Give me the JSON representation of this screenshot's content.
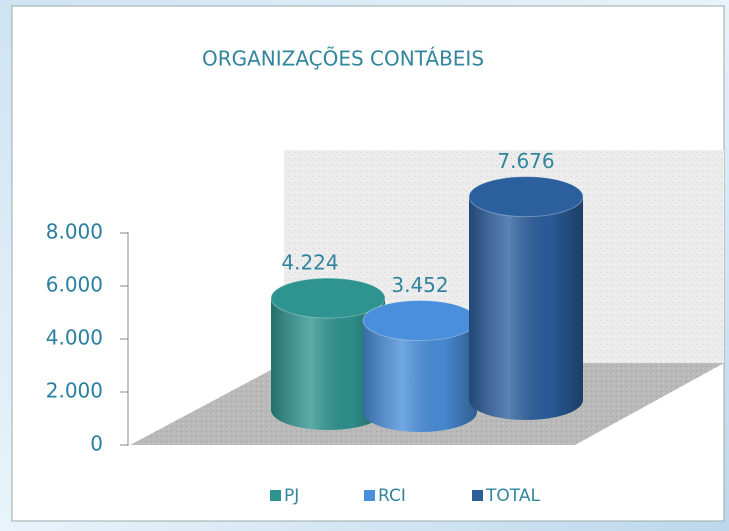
{
  "chart_data": {
    "type": "bar3d",
    "title": "ORGANIZAÇÕES CONTÁBEIS",
    "categories": [
      "PJ",
      "RCI",
      "TOTAL"
    ],
    "values": [
      4224,
      3452,
      7676
    ],
    "value_labels": [
      "4.224",
      "3.452",
      "7.676"
    ],
    "colors": [
      "#2f9490",
      "#4a8fdb",
      "#2c5f9e"
    ],
    "ylim": [
      0,
      8000
    ],
    "yticks": [
      0,
      {
        "value": 2000,
        "label": "2.000"
      },
      {
        "value": 4000,
        "label": "4.000"
      },
      {
        "value": 6000,
        "label": "6.000"
      },
      {
        "value": 8000,
        "label": "8.000"
      }
    ],
    "legend": "bottom"
  }
}
